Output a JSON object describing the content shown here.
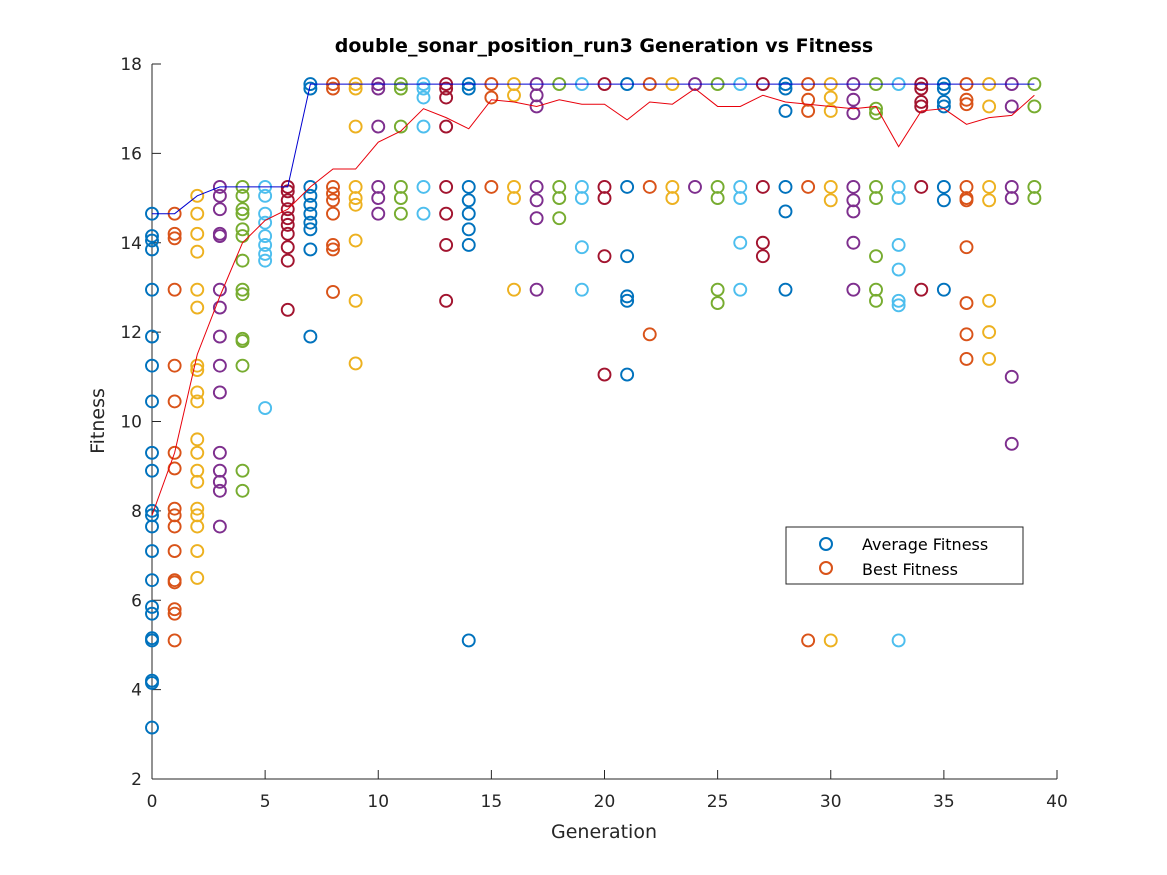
{
  "chart_data": {
    "type": "scatter",
    "title": "double_sonar_position_run3 Generation vs Fitness",
    "xlabel": "Generation",
    "ylabel": "Fitness",
    "xlim": [
      0,
      40
    ],
    "ylim": [
      2,
      18
    ],
    "xticks": [
      0,
      5,
      10,
      15,
      20,
      25,
      30,
      35,
      40
    ],
    "yticks": [
      2,
      4,
      6,
      8,
      10,
      12,
      14,
      16,
      18
    ],
    "grid": false,
    "legend": {
      "placement": "right",
      "entries": [
        {
          "label": "Average Fitness",
          "color": "#0072BD"
        },
        {
          "label": "Best Fitness",
          "color": "#D95319"
        }
      ]
    },
    "palette": [
      "#0072BD",
      "#D95319",
      "#EDB120",
      "#7E2F8E",
      "#77AC30",
      "#4DBEEE",
      "#A2142F"
    ],
    "scatter_points": [
      {
        "gen": 0,
        "values": [
          14.65,
          14.15,
          14.05,
          13.85,
          12.95,
          11.9,
          11.25,
          10.45,
          9.3,
          8.9,
          8.0,
          7.9,
          7.65,
          7.1,
          6.45,
          5.85,
          5.7,
          5.15,
          5.1,
          4.2,
          4.15,
          3.15
        ]
      },
      {
        "gen": 1,
        "values": [
          14.65,
          14.2,
          14.1,
          12.95,
          11.25,
          10.45,
          9.3,
          8.95,
          8.05,
          7.9,
          7.65,
          7.1,
          6.45,
          6.4,
          5.8,
          5.7,
          5.1
        ]
      },
      {
        "gen": 2,
        "values": [
          15.05,
          14.65,
          14.2,
          13.8,
          12.95,
          12.55,
          11.25,
          11.15,
          10.65,
          10.45,
          9.6,
          9.3,
          8.9,
          8.65,
          8.05,
          7.9,
          7.65,
          7.1,
          6.5
        ]
      },
      {
        "gen": 3,
        "values": [
          15.25,
          15.05,
          14.75,
          14.2,
          14.15,
          12.95,
          12.55,
          11.9,
          11.25,
          10.65,
          9.3,
          8.9,
          8.65,
          8.45,
          7.65
        ]
      },
      {
        "gen": 4,
        "values": [
          15.25,
          15.05,
          14.75,
          14.65,
          14.3,
          14.15,
          13.6,
          12.95,
          12.85,
          11.85,
          11.8,
          11.25,
          8.9,
          8.45
        ]
      },
      {
        "gen": 5,
        "values": [
          15.25,
          15.05,
          14.65,
          14.45,
          14.15,
          13.95,
          13.75,
          13.6,
          10.3
        ]
      },
      {
        "gen": 6,
        "values": [
          15.25,
          15.15,
          14.95,
          14.75,
          14.55,
          14.4,
          14.2,
          13.9,
          13.6,
          12.5
        ]
      },
      {
        "gen": 7,
        "values": [
          17.55,
          17.45,
          15.25,
          15.05,
          14.85,
          14.65,
          14.45,
          14.3,
          13.85,
          11.9
        ]
      },
      {
        "gen": 8,
        "values": [
          17.55,
          17.45,
          15.25,
          15.1,
          14.95,
          14.65,
          13.95,
          13.85,
          12.9
        ]
      },
      {
        "gen": 9,
        "values": [
          17.55,
          17.45,
          16.6,
          15.25,
          15.0,
          14.85,
          14.05,
          12.7,
          11.3
        ]
      },
      {
        "gen": 10,
        "values": [
          17.55,
          17.45,
          16.6,
          15.25,
          15.0,
          14.65
        ]
      },
      {
        "gen": 11,
        "values": [
          17.55,
          17.45,
          16.6,
          15.25,
          15.0,
          14.65
        ]
      },
      {
        "gen": 12,
        "values": [
          17.55,
          17.45,
          17.25,
          16.6,
          15.25,
          14.65
        ]
      },
      {
        "gen": 13,
        "values": [
          17.55,
          17.45,
          17.25,
          16.6,
          15.25,
          14.65,
          13.95,
          12.7
        ]
      },
      {
        "gen": 14,
        "values": [
          17.55,
          17.45,
          15.25,
          14.95,
          14.65,
          14.3,
          13.95,
          5.1
        ]
      },
      {
        "gen": 15,
        "values": [
          17.55,
          17.25,
          15.25
        ]
      },
      {
        "gen": 16,
        "values": [
          17.55,
          17.3,
          15.25,
          15.0,
          12.95
        ]
      },
      {
        "gen": 17,
        "values": [
          17.55,
          17.3,
          17.05,
          15.25,
          14.95,
          14.55,
          12.95
        ]
      },
      {
        "gen": 18,
        "values": [
          17.55,
          15.25,
          15.0,
          14.55
        ]
      },
      {
        "gen": 19,
        "values": [
          17.55,
          15.25,
          15.0,
          13.9,
          12.95
        ]
      },
      {
        "gen": 20,
        "values": [
          17.55,
          15.25,
          15.0,
          13.7,
          11.05
        ]
      },
      {
        "gen": 21,
        "values": [
          17.55,
          15.25,
          13.7,
          12.8,
          12.7,
          11.05
        ]
      },
      {
        "gen": 22,
        "values": [
          17.55,
          15.25,
          11.95
        ]
      },
      {
        "gen": 23,
        "values": [
          17.55,
          15.25,
          15.0
        ]
      },
      {
        "gen": 24,
        "values": [
          17.55,
          15.25
        ]
      },
      {
        "gen": 25,
        "values": [
          17.55,
          15.25,
          15.0,
          12.95,
          12.65
        ]
      },
      {
        "gen": 26,
        "values": [
          17.55,
          15.25,
          15.0,
          14.0,
          12.95
        ]
      },
      {
        "gen": 27,
        "values": [
          17.55,
          15.25,
          14.0,
          13.7
        ]
      },
      {
        "gen": 28,
        "values": [
          17.55,
          17.45,
          16.95,
          15.25,
          14.7,
          12.95
        ]
      },
      {
        "gen": 29,
        "values": [
          17.55,
          17.2,
          16.95,
          15.25,
          5.1
        ]
      },
      {
        "gen": 30,
        "values": [
          17.55,
          17.25,
          16.95,
          15.25,
          14.95,
          5.1
        ]
      },
      {
        "gen": 31,
        "values": [
          17.55,
          17.2,
          16.9,
          15.25,
          14.95,
          14.7,
          14.0,
          12.95
        ]
      },
      {
        "gen": 32,
        "values": [
          17.55,
          17.0,
          16.9,
          15.25,
          15.0,
          13.7,
          12.95,
          12.7
        ]
      },
      {
        "gen": 33,
        "values": [
          17.55,
          15.25,
          15.0,
          13.95,
          13.4,
          12.7,
          12.6,
          5.1
        ]
      },
      {
        "gen": 34,
        "values": [
          17.55,
          17.45,
          17.15,
          17.05,
          15.25,
          12.95
        ]
      },
      {
        "gen": 35,
        "values": [
          17.55,
          17.45,
          17.15,
          17.05,
          15.25,
          14.95,
          12.95
        ]
      },
      {
        "gen": 36,
        "values": [
          17.55,
          17.2,
          17.1,
          15.25,
          15.0,
          14.95,
          13.9,
          12.65,
          11.95,
          11.4
        ]
      },
      {
        "gen": 37,
        "values": [
          17.55,
          17.05,
          15.25,
          14.95,
          12.7,
          12.0,
          11.4
        ]
      },
      {
        "gen": 38,
        "values": [
          17.55,
          17.05,
          15.25,
          15.0,
          11.0,
          9.5
        ]
      },
      {
        "gen": 39,
        "values": [
          17.55,
          17.05,
          15.25,
          15.0
        ]
      }
    ],
    "series": [
      {
        "name": "Average Fitness",
        "color": "#e8000b",
        "x": [
          0,
          1,
          2,
          3,
          4,
          5,
          6,
          7,
          8,
          9,
          10,
          11,
          12,
          13,
          14,
          15,
          16,
          17,
          18,
          19,
          20,
          21,
          22,
          23,
          24,
          25,
          26,
          27,
          28,
          29,
          30,
          31,
          32,
          33,
          34,
          35,
          36,
          37,
          38,
          39
        ],
        "values": [
          7.9,
          9.3,
          11.5,
          12.8,
          14.0,
          14.5,
          14.75,
          15.25,
          15.65,
          15.65,
          16.25,
          16.5,
          17.0,
          16.8,
          16.55,
          17.2,
          17.15,
          17.05,
          17.2,
          17.1,
          17.1,
          16.75,
          17.15,
          17.1,
          17.45,
          17.05,
          17.05,
          17.3,
          17.15,
          17.1,
          17.05,
          17.0,
          17.05,
          16.15,
          16.95,
          17.0,
          16.65,
          16.8,
          16.85,
          17.3
        ]
      },
      {
        "name": "Best Fitness",
        "color": "#0000d0",
        "x": [
          0,
          1,
          2,
          3,
          4,
          5,
          6,
          7,
          8,
          9,
          10,
          11,
          12,
          13,
          14,
          15,
          16,
          17,
          18,
          19,
          20,
          21,
          22,
          23,
          24,
          25,
          26,
          27,
          28,
          29,
          30,
          31,
          32,
          33,
          34,
          35,
          36,
          37,
          38,
          39
        ],
        "values": [
          14.65,
          14.65,
          15.05,
          15.25,
          15.25,
          15.25,
          15.25,
          17.55,
          17.55,
          17.55,
          17.55,
          17.55,
          17.55,
          17.55,
          17.55,
          17.55,
          17.55,
          17.55,
          17.55,
          17.55,
          17.55,
          17.55,
          17.55,
          17.55,
          17.55,
          17.55,
          17.55,
          17.55,
          17.55,
          17.55,
          17.55,
          17.55,
          17.55,
          17.55,
          17.55,
          17.55,
          17.55,
          17.55,
          17.55,
          17.55
        ]
      }
    ]
  }
}
